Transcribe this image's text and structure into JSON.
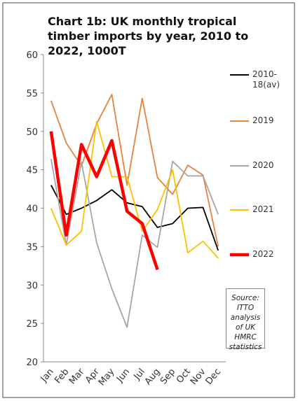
{
  "chart_data": {
    "type": "line",
    "title": "Chart 1b: UK monthly tropical timber imports by year, 2010 to 2022, 1000T",
    "categories": [
      "Jan",
      "Feb",
      "Mar",
      "Apr",
      "May",
      "Jun",
      "Jul",
      "Aug",
      "Sep",
      "Oct",
      "Nov",
      "Dec"
    ],
    "series": [
      {
        "name": "2010-18(av)",
        "color": "#000000",
        "values": [
          43,
          39.2,
          40,
          41,
          42.4,
          40.7,
          40.2,
          37.5,
          38,
          40,
          40.1,
          34.5
        ]
      },
      {
        "name": "2019",
        "color": "#e8823a",
        "values": [
          54,
          48.5,
          45.5,
          51,
          54.8,
          43,
          54.3,
          44,
          41.8,
          45.6,
          44.3,
          35
        ]
      },
      {
        "name": "2020",
        "color": "#a6a6a6",
        "values": [
          46.4,
          35.2,
          46,
          35.5,
          29.5,
          24.5,
          36.5,
          34.9,
          46.1,
          44.2,
          44.2,
          39.2
        ]
      },
      {
        "name": "2021",
        "color": "#ffc000",
        "values": [
          40,
          35.2,
          37,
          51.3,
          44.1,
          44.1,
          37,
          39.8,
          45,
          34.2,
          35.7,
          33.5
        ]
      },
      {
        "name": "2022",
        "color": "#ff0000",
        "values": [
          50,
          36.5,
          48.3,
          44.1,
          48.8,
          39.6,
          38,
          32,
          null,
          null,
          null,
          null
        ]
      }
    ],
    "ylim": [
      20,
      60
    ],
    "yticks": [
      20,
      25,
      30,
      35,
      40,
      45,
      50,
      55,
      60
    ],
    "grid": false,
    "legend": "right",
    "annotation": "Source: ITTO analysis of UK HMRC statistics"
  }
}
